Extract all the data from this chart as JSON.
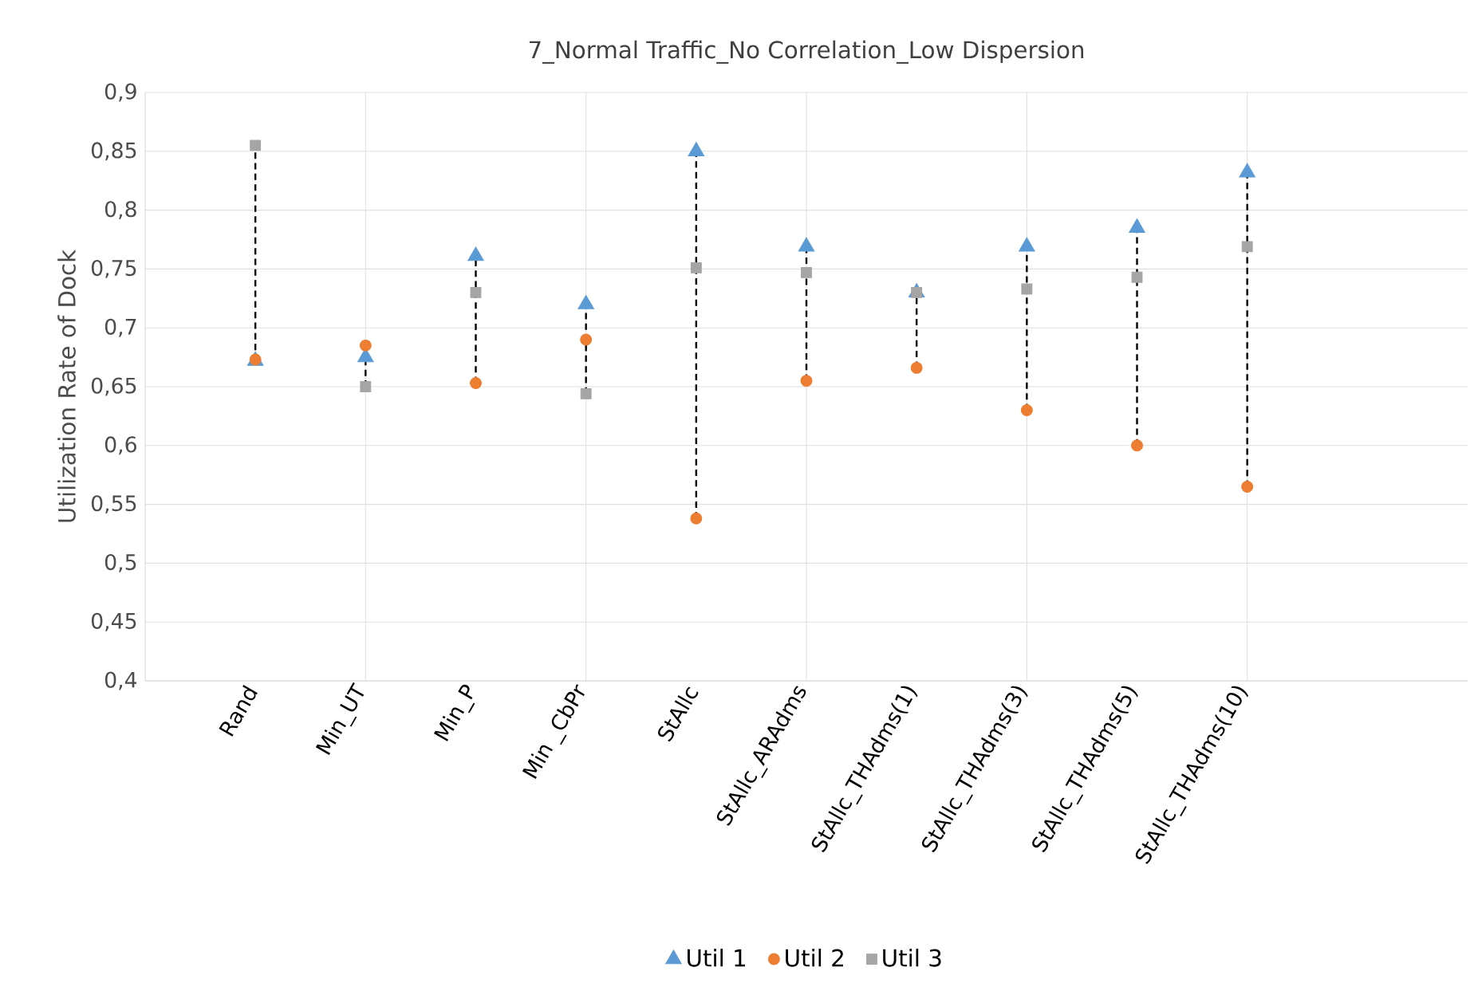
{
  "chart_data": {
    "type": "scatter",
    "title": "7_Normal Traffic_No Correlation_Low Dispersion",
    "ylabel": "Utilization Rate of Dock",
    "categories": [
      "Rand",
      "Min_UT",
      "Min_P",
      "Min _CbPr",
      "StAllc",
      "StAllc_ARAdms",
      "StAllc_THAdms(1)",
      "StAllc_THAdms(3)",
      "StAllc_THAdms(5)",
      "StAllc_THAdms(10)"
    ],
    "series": [
      {
        "name": "Util 1",
        "color": "#5b9bd5",
        "marker": "triangle",
        "values": [
          0.672,
          0.675,
          0.761,
          0.72,
          0.85,
          0.769,
          0.73,
          0.769,
          0.785,
          0.832
        ]
      },
      {
        "name": "Util 2",
        "color": "#ed7d31",
        "marker": "circle",
        "values": [
          0.673,
          0.685,
          0.653,
          0.69,
          0.538,
          0.655,
          0.666,
          0.63,
          0.6,
          0.565
        ]
      },
      {
        "name": "Util 3",
        "color": "#a5a5a5",
        "marker": "square",
        "values": [
          0.855,
          0.65,
          0.73,
          0.644,
          0.751,
          0.747,
          0.73,
          0.733,
          0.743,
          0.769
        ]
      }
    ],
    "ylim": [
      0.4,
      0.9
    ],
    "yticks": [
      {
        "value": 0.4,
        "label": "0,4"
      },
      {
        "value": 0.45,
        "label": "0,45"
      },
      {
        "value": 0.5,
        "label": "0,5"
      },
      {
        "value": 0.55,
        "label": "0,55"
      },
      {
        "value": 0.6,
        "label": "0,6"
      },
      {
        "value": 0.65,
        "label": "0,65"
      },
      {
        "value": 0.7,
        "label": "0,7"
      },
      {
        "value": 0.75,
        "label": "0,75"
      },
      {
        "value": 0.8,
        "label": "0,8"
      },
      {
        "value": 0.85,
        "label": "0,85"
      },
      {
        "value": 0.9,
        "label": "0,9"
      }
    ],
    "grid": true,
    "legend": "bottom"
  }
}
